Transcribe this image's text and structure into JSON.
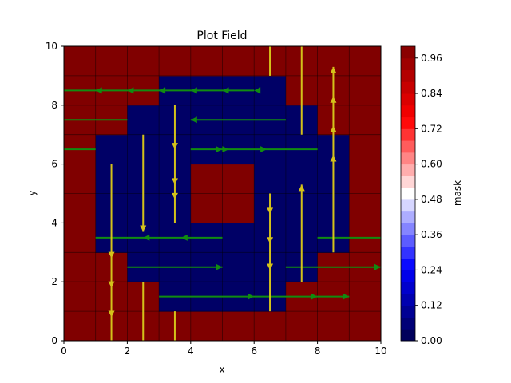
{
  "chart_data": {
    "type": "heatmap",
    "title": "Plot Field",
    "xlabel": "x",
    "ylabel": "y",
    "xlim": [
      0,
      10
    ],
    "ylim": [
      0,
      10
    ],
    "x_ticks": [
      0,
      2,
      4,
      6,
      8,
      10
    ],
    "y_ticks": [
      0,
      2,
      4,
      6,
      8,
      10
    ],
    "grid": true,
    "mask_rows_top_to_bottom": [
      "1111111111",
      "1111111111",
      "1111111111",
      "1111111111",
      "1111111111",
      "1111111111",
      "1111111111",
      "1111111111",
      "1111111111",
      "1111111111"
    ],
    "mask_holes": [
      {
        "x0": 3,
        "x1": 7,
        "y0": 8,
        "y1": 9
      },
      {
        "x0": 2,
        "x1": 7,
        "y0": 7,
        "y1": 8
      },
      {
        "x0": 2,
        "x1": 8,
        "y0": 7,
        "y1": 7.0
      },
      {
        "x0": 1,
        "x1": 9,
        "y0": 6,
        "y1": 7
      },
      {
        "x0": 1,
        "x1": 4,
        "y0": 4,
        "y1": 6
      },
      {
        "x0": 6,
        "x1": 9,
        "y0": 4,
        "y1": 6
      },
      {
        "x0": 1,
        "x1": 9,
        "y0": 3,
        "y1": 4
      },
      {
        "x0": 2,
        "x1": 8,
        "y0": 2,
        "y1": 3
      },
      {
        "x0": 3,
        "x1": 7,
        "y0": 1,
        "y1": 2
      },
      {
        "x0": 2,
        "x1": 8,
        "y0": 7,
        "y1": 8
      },
      {
        "x0": 2,
        "x1": 7,
        "y0": 8,
        "y1": 8
      },
      {
        "x0": 7,
        "x1": 8,
        "y0": 2,
        "y1": 4
      },
      {
        "x0": 8,
        "x1": 9,
        "y0": 3,
        "y1": 4
      }
    ],
    "horizontal_arrows": [
      {
        "y": 8.5,
        "x_from": 6,
        "x_to": 0,
        "heads": [
          6,
          5,
          4,
          3,
          2,
          1
        ]
      },
      {
        "y": 7.5,
        "x_from": 0,
        "x_to": 2,
        "heads": []
      },
      {
        "y": 7.5,
        "x_from": 7,
        "x_to": 4,
        "heads": [
          4
        ]
      },
      {
        "y": 6.5,
        "x_from": 0,
        "x_to": 1,
        "heads": []
      },
      {
        "y": 6.5,
        "x_from": 4,
        "x_to": 8,
        "heads": [
          5,
          5.2,
          6.4
        ]
      },
      {
        "y": 3.5,
        "x_from": 5,
        "x_to": 1,
        "heads": [
          2.5,
          3.7
        ]
      },
      {
        "y": 3.5,
        "x_from": 8,
        "x_to": 10,
        "heads": []
      },
      {
        "y": 2.5,
        "x_from": 2,
        "x_to": 5,
        "heads": [
          5
        ]
      },
      {
        "y": 2.5,
        "x_from": 7,
        "x_to": 10,
        "heads": [
          10
        ]
      },
      {
        "y": 1.5,
        "x_from": 3,
        "x_to": 9,
        "heads": [
          6,
          8,
          9
        ]
      }
    ],
    "vertical_arrows": [
      {
        "x": 1.5,
        "y_from": 6,
        "y_to": 0,
        "heads": [
          2.8,
          1.8,
          0.8
        ]
      },
      {
        "x": 2.5,
        "y_from": 7,
        "y_to": 3.7,
        "heads": [
          3.7
        ]
      },
      {
        "x": 2.5,
        "y_from": 2,
        "y_to": 0,
        "heads": []
      },
      {
        "x": 3.5,
        "y_from": 8,
        "y_to": 4,
        "heads": [
          6.5,
          5.3,
          4.8
        ]
      },
      {
        "x": 3.5,
        "y_from": 1,
        "y_to": 0,
        "heads": []
      },
      {
        "x": 6.5,
        "y_from": 10,
        "y_to": 9,
        "heads": []
      },
      {
        "x": 6.5,
        "y_from": 5,
        "y_to": 1,
        "heads": [
          4.3,
          3.3,
          2.4
        ]
      },
      {
        "x": 7.5,
        "y_from": 10,
        "y_to": 7,
        "heads": []
      },
      {
        "x": 7.5,
        "y_from": 2,
        "y_to": 5.3,
        "heads": [
          5.3
        ]
      },
      {
        "x": 8.5,
        "y_from": 3,
        "y_to": 9.3,
        "heads": [
          6.3,
          7.3,
          8.3,
          9.3
        ]
      }
    ],
    "colors": {
      "high": "#800000",
      "low": "#000066",
      "horizontal_arrow": "#118c11",
      "vertical_arrow": "#d4c21a"
    },
    "colorbar": {
      "label": "mask",
      "min": 0,
      "max": 1,
      "ticks": [
        "0.00",
        "0.12",
        "0.24",
        "0.36",
        "0.48",
        "0.60",
        "0.72",
        "0.84",
        "0.96"
      ],
      "tick_values": [
        0,
        0.12,
        0.24,
        0.36,
        0.48,
        0.6,
        0.72,
        0.84,
        0.96
      ],
      "levels": 25,
      "cmap": "seismic"
    }
  }
}
